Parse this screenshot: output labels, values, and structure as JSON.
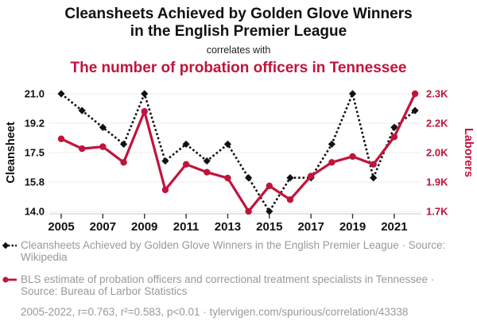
{
  "header": {
    "title_line1": "Cleansheets Achieved by Golden Glove Winners",
    "title_line2": "in the English Premier League",
    "connector": "correlates with",
    "subtitle": "The number of probation officers in Tennessee"
  },
  "colors": {
    "series1": "#111111",
    "series2": "#c0143c",
    "legend_text": "#999999",
    "grid": "#ededed",
    "axis_line": "#c9c9c9",
    "tick_mark": "#333333"
  },
  "chart_data": {
    "type": "line",
    "title": "Cleansheets Achieved by Golden Glove Winners in the English Premier League correlates with The number of probation officers in Tennessee",
    "grid": "horizontal",
    "legend_position": "bottom",
    "x": [
      2005,
      2006,
      2007,
      2008,
      2009,
      2010,
      2011,
      2012,
      2013,
      2014,
      2015,
      2016,
      2017,
      2018,
      2019,
      2020,
      2021,
      2022
    ],
    "series": [
      {
        "name": "Cleansheets Achieved by Golden Glove Winners in the English Premier League",
        "axis": "left",
        "style": "dashed-diamond",
        "values": [
          21,
          20,
          19,
          18,
          21,
          17,
          18,
          17,
          18,
          16,
          14,
          16,
          16,
          18,
          21,
          16,
          19,
          20
        ]
      },
      {
        "name": "BLS estimate of probation officers and correctional treatment specialists in Tennessee",
        "axis": "right",
        "style": "solid-circle",
        "values": [
          2070,
          2020,
          2030,
          1950,
          2210,
          1810,
          1940,
          1900,
          1870,
          1700,
          1830,
          1760,
          1880,
          1950,
          1980,
          1940,
          2080,
          2300
        ]
      }
    ],
    "left_axis": {
      "label": "Cleansheet",
      "range": [
        14,
        21
      ],
      "tick_values": [
        14.0,
        15.75,
        17.5,
        19.25,
        21.0
      ],
      "tick_labels": [
        "14.0",
        "15.8",
        "17.5",
        "19.2",
        "21.0"
      ]
    },
    "right_axis": {
      "label": "Laborers",
      "range": [
        1700,
        2300
      ],
      "tick_values": [
        1700,
        1850,
        2000,
        2150,
        2300
      ],
      "tick_labels": [
        "1.7K",
        "1.9K",
        "2.0K",
        "2.2K",
        "2.3K"
      ]
    },
    "x_axis": {
      "tick_values": [
        2005,
        2007,
        2009,
        2011,
        2013,
        2015,
        2017,
        2019,
        2021
      ],
      "tick_labels": [
        "2005",
        "2007",
        "2009",
        "2011",
        "2013",
        "2015",
        "2017",
        "2019",
        "2021"
      ]
    }
  },
  "legend": [
    {
      "marker": "black-diamond-dashed-line",
      "label": "Cleansheets Achieved by Golden Glove Winners in the English Premier League · Source: Wikipedia"
    },
    {
      "marker": "red-circle-solid-line",
      "label": "BLS estimate of probation officers and correctional treatment specialists in Tennessee · Source: Bureau of Larbor Statistics"
    }
  ],
  "footer": {
    "text": "2005-2022, r=0.763, r²=0.583, p<0.01 · tylervigen.com/spurious/correlation/43338"
  }
}
